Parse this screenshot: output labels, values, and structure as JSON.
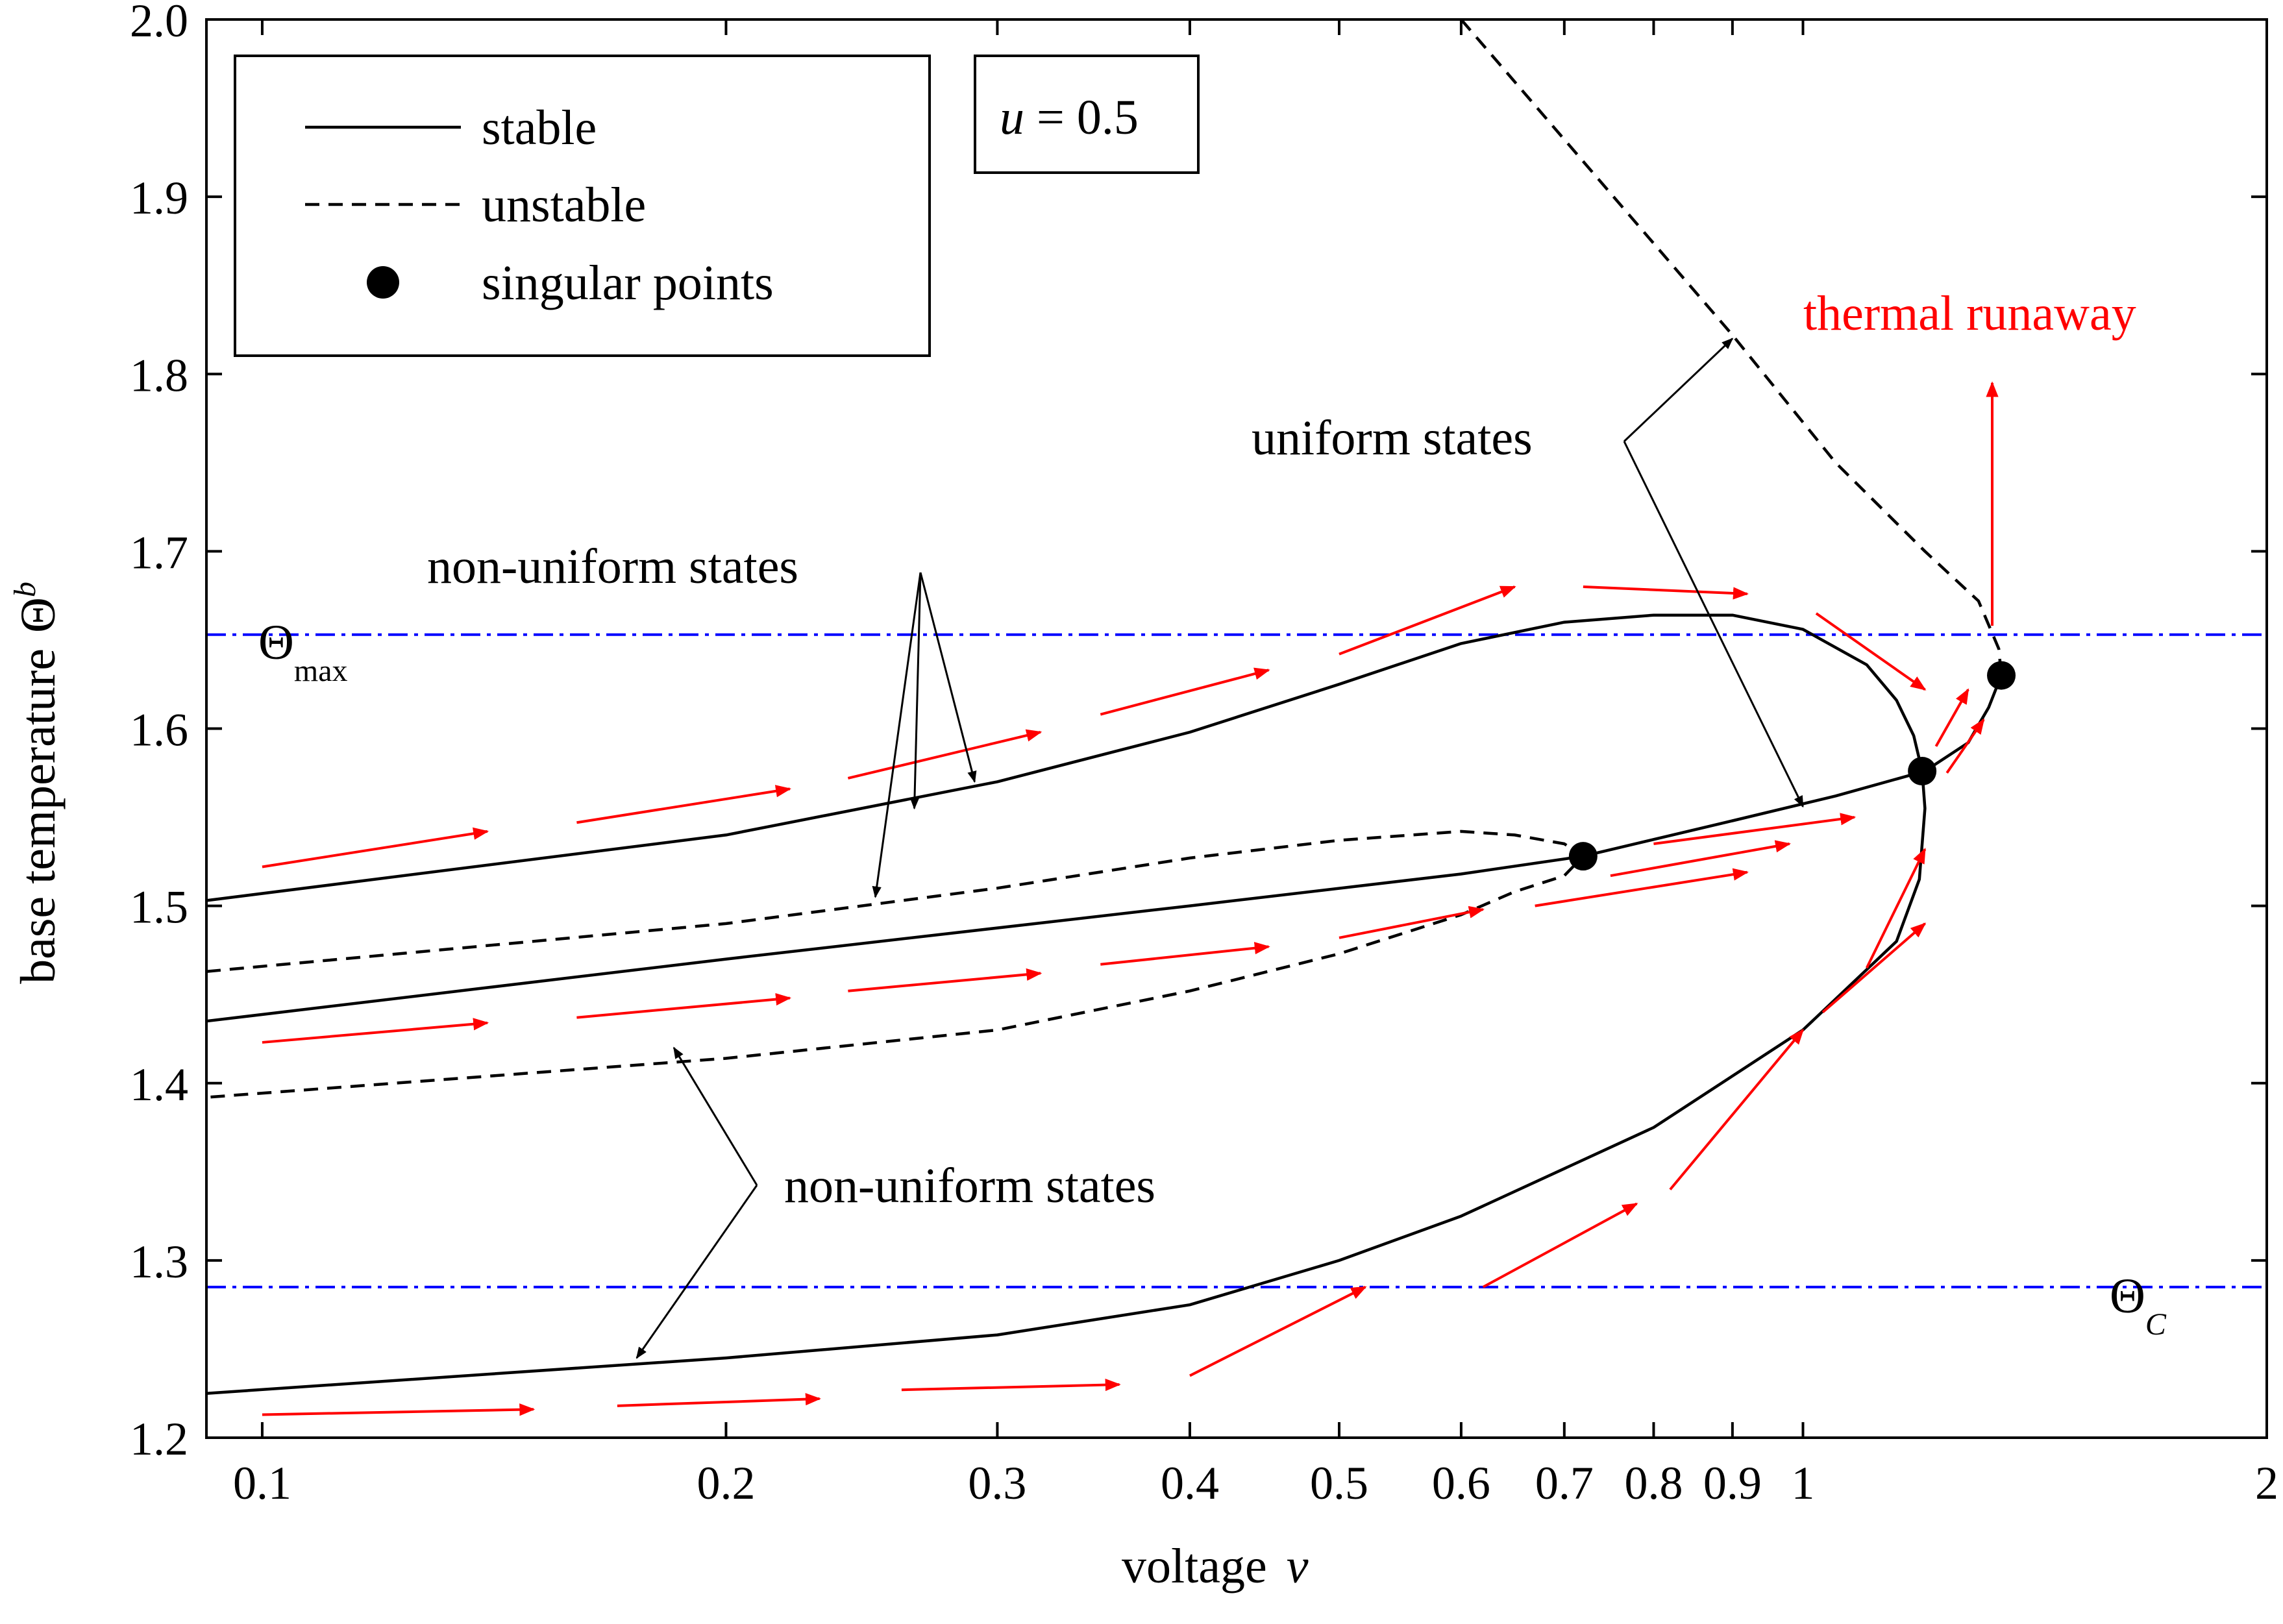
{
  "chart_data": {
    "type": "line",
    "title": "",
    "xlabel": "voltage",
    "xlabel_var": "v",
    "ylabel": "base temperature",
    "ylabel_symbol": "Θ",
    "ylabel_sub": "b",
    "xscale": "log",
    "xlim": [
      0.092,
      2.0
    ],
    "ylim": [
      1.2,
      2.0
    ],
    "x_ticks": [
      {
        "value": 0.1,
        "label": "0.1"
      },
      {
        "value": 0.2,
        "label": "0.2"
      },
      {
        "value": 0.3,
        "label": "0.3"
      },
      {
        "value": 0.4,
        "label": "0.4"
      },
      {
        "value": 0.5,
        "label": "0.5"
      },
      {
        "value": 0.6,
        "label": "0.6"
      },
      {
        "value": 0.7,
        "label": "0.7"
      },
      {
        "value": 0.8,
        "label": "0.8"
      },
      {
        "value": 0.9,
        "label": "0.9"
      },
      {
        "value": 1.0,
        "label": "1"
      },
      {
        "value": 2.0,
        "label": "2"
      }
    ],
    "y_ticks": [
      {
        "value": 1.2,
        "label": "1.2"
      },
      {
        "value": 1.3,
        "label": "1.3"
      },
      {
        "value": 1.4,
        "label": "1.4"
      },
      {
        "value": 1.5,
        "label": "1.5"
      },
      {
        "value": 1.6,
        "label": "1.6"
      },
      {
        "value": 1.7,
        "label": "1.7"
      },
      {
        "value": 1.8,
        "label": "1.8"
      },
      {
        "value": 1.9,
        "label": "1.9"
      },
      {
        "value": 2.0,
        "label": "2.0"
      }
    ],
    "legend": {
      "position": "top-left",
      "entries": [
        {
          "label": "stable",
          "style": "solid"
        },
        {
          "label": "unstable",
          "style": "dashed"
        },
        {
          "label": "singular points",
          "style": "marker"
        }
      ]
    },
    "parameter_box": {
      "var": "u",
      "text": " = 0.5"
    },
    "reference_lines": [
      {
        "name": "theta-max",
        "y": 1.653,
        "symbol": "Θ",
        "sub": "max",
        "color": "#0000ff"
      },
      {
        "name": "theta-c",
        "y": 1.285,
        "symbol": "Θ",
        "sub": "C",
        "color": "#0000ff"
      }
    ],
    "series": [
      {
        "name": "uniform stable",
        "style": "solid",
        "points": [
          [
            0.092,
            1.435
          ],
          [
            0.2,
            1.47
          ],
          [
            0.4,
            1.5
          ],
          [
            0.6,
            1.518
          ],
          [
            0.72,
            1.528
          ],
          [
            0.9,
            1.548
          ],
          [
            1.05,
            1.562
          ],
          [
            1.2,
            1.576
          ],
          [
            1.28,
            1.592
          ],
          [
            1.32,
            1.612
          ],
          [
            1.345,
            1.63
          ]
        ]
      },
      {
        "name": "uniform unstable",
        "style": "dashed",
        "points": [
          [
            0.6,
            2.0
          ],
          [
            0.9,
            1.822
          ],
          [
            1.05,
            1.75
          ],
          [
            1.2,
            1.7
          ],
          [
            1.3,
            1.672
          ],
          [
            1.34,
            1.645
          ],
          [
            1.345,
            1.63
          ]
        ]
      },
      {
        "name": "non-uniform stable upper",
        "style": "solid",
        "points": [
          [
            0.092,
            1.503
          ],
          [
            0.2,
            1.54
          ],
          [
            0.3,
            1.57
          ],
          [
            0.4,
            1.598
          ],
          [
            0.5,
            1.625
          ],
          [
            0.6,
            1.648
          ],
          [
            0.7,
            1.66
          ],
          [
            0.8,
            1.664
          ],
          [
            0.9,
            1.664
          ],
          [
            1.0,
            1.656
          ],
          [
            1.1,
            1.636
          ],
          [
            1.15,
            1.616
          ],
          [
            1.18,
            1.596
          ],
          [
            1.195,
            1.576
          ],
          [
            1.2,
            1.555
          ],
          [
            1.19,
            1.515
          ],
          [
            1.15,
            1.48
          ],
          [
            1.0,
            1.43
          ],
          [
            0.8,
            1.375
          ],
          [
            0.6,
            1.325
          ],
          [
            0.5,
            1.3
          ],
          [
            0.4,
            1.275
          ],
          [
            0.3,
            1.258
          ],
          [
            0.2,
            1.245
          ],
          [
            0.092,
            1.225
          ]
        ]
      },
      {
        "name": "non-uniform unstable",
        "style": "dashed",
        "points": [
          [
            0.092,
            1.463
          ],
          [
            0.2,
            1.49
          ],
          [
            0.3,
            1.51
          ],
          [
            0.4,
            1.527
          ],
          [
            0.5,
            1.537
          ],
          [
            0.6,
            1.542
          ],
          [
            0.65,
            1.54
          ],
          [
            0.7,
            1.535
          ],
          [
            0.72,
            1.528
          ],
          [
            0.7,
            1.517
          ],
          [
            0.65,
            1.508
          ],
          [
            0.6,
            1.495
          ],
          [
            0.5,
            1.473
          ],
          [
            0.4,
            1.452
          ],
          [
            0.3,
            1.43
          ],
          [
            0.2,
            1.414
          ],
          [
            0.092,
            1.392
          ]
        ]
      }
    ],
    "singular_points": [
      [
        0.72,
        1.528
      ],
      [
        1.195,
        1.576
      ],
      [
        1.345,
        1.63
      ]
    ],
    "annotations": [
      {
        "name": "label-uniform-states",
        "text": "uniform states",
        "color": "#000000"
      },
      {
        "name": "label-non-uniform-states-upper",
        "text": "non-uniform states",
        "color": "#000000"
      },
      {
        "name": "label-non-uniform-states-lower",
        "text": "non-uniform states",
        "color": "#000000"
      },
      {
        "name": "label-thermal-runaway",
        "text": "thermal runaway",
        "color": "#ff0000"
      }
    ],
    "flow_arrows": [
      [
        [
          0.1,
          1.522
        ],
        [
          0.14,
          1.542
        ]
      ],
      [
        [
          0.16,
          1.547
        ],
        [
          0.22,
          1.566
        ]
      ],
      [
        [
          0.24,
          1.572
        ],
        [
          0.32,
          1.598
        ]
      ],
      [
        [
          0.35,
          1.608
        ],
        [
          0.45,
          1.633
        ]
      ],
      [
        [
          0.5,
          1.642
        ],
        [
          0.65,
          1.68
        ]
      ],
      [
        [
          0.72,
          1.68
        ],
        [
          0.92,
          1.676
        ]
      ],
      [
        [
          1.02,
          1.665
        ],
        [
          1.2,
          1.622
        ]
      ],
      [
        [
          1.22,
          1.59
        ],
        [
          1.28,
          1.622
        ]
      ],
      [
        [
          1.24,
          1.575
        ],
        [
          1.31,
          1.605
        ]
      ],
      [
        [
          0.1,
          1.423
        ],
        [
          0.14,
          1.434
        ]
      ],
      [
        [
          0.16,
          1.437
        ],
        [
          0.22,
          1.448
        ]
      ],
      [
        [
          0.24,
          1.452
        ],
        [
          0.32,
          1.462
        ]
      ],
      [
        [
          0.35,
          1.467
        ],
        [
          0.45,
          1.477
        ]
      ],
      [
        [
          0.5,
          1.482
        ],
        [
          0.62,
          1.498
        ]
      ],
      [
        [
          0.67,
          1.5
        ],
        [
          0.92,
          1.519
        ]
      ],
      [
        [
          0.75,
          1.517
        ],
        [
          0.98,
          1.535
        ]
      ],
      [
        [
          0.8,
          1.535
        ],
        [
          1.08,
          1.55
        ]
      ],
      [
        [
          1.1,
          1.465
        ],
        [
          1.2,
          1.532
        ]
      ],
      [
        [
          0.1,
          1.213
        ],
        [
          0.15,
          1.216
        ]
      ],
      [
        [
          0.17,
          1.218
        ],
        [
          0.23,
          1.222
        ]
      ],
      [
        [
          0.26,
          1.227
        ],
        [
          0.36,
          1.23
        ]
      ],
      [
        [
          0.4,
          1.235
        ],
        [
          0.52,
          1.285
        ]
      ],
      [
        [
          0.62,
          1.285
        ],
        [
          0.78,
          1.332
        ]
      ],
      [
        [
          0.82,
          1.34
        ],
        [
          1.0,
          1.43
        ]
      ],
      [
        [
          1.03,
          1.44
        ],
        [
          1.2,
          1.49
        ]
      ]
    ]
  }
}
